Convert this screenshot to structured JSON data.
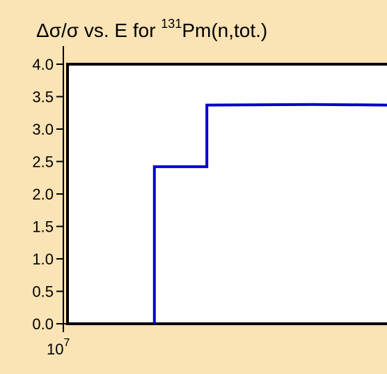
{
  "chart_data": {
    "type": "line",
    "title": {
      "prefix": "Δσ/σ vs. E for ",
      "superscript": "131",
      "suffix": "Pm(n,tot.)"
    },
    "xlabel": "",
    "ylabel": "",
    "x_scale": "log",
    "x_tick_labels": [
      {
        "base": "10",
        "exponent": "7"
      }
    ],
    "y_tick_labels": [
      "4.0",
      "3.5",
      "3.0",
      "2.5",
      "2.0",
      "1.5",
      "1.0",
      "0.5",
      "0.0"
    ],
    "ylim": [
      0,
      4
    ],
    "series": [
      {
        "color": "#0000cc",
        "style": "step",
        "x": [
          17700000.0,
          17700000.0,
          25000000.0,
          25000000.0,
          50000000.0,
          83000000.0
        ],
        "y": [
          0.0,
          2.42,
          2.42,
          3.37,
          3.38,
          3.37
        ]
      }
    ],
    "grid": false,
    "legend": "none"
  },
  "colors": {
    "page_background": "#fae3b4",
    "plot_background": "#ffffff",
    "axis": "#000000",
    "series": "#0000cc"
  }
}
